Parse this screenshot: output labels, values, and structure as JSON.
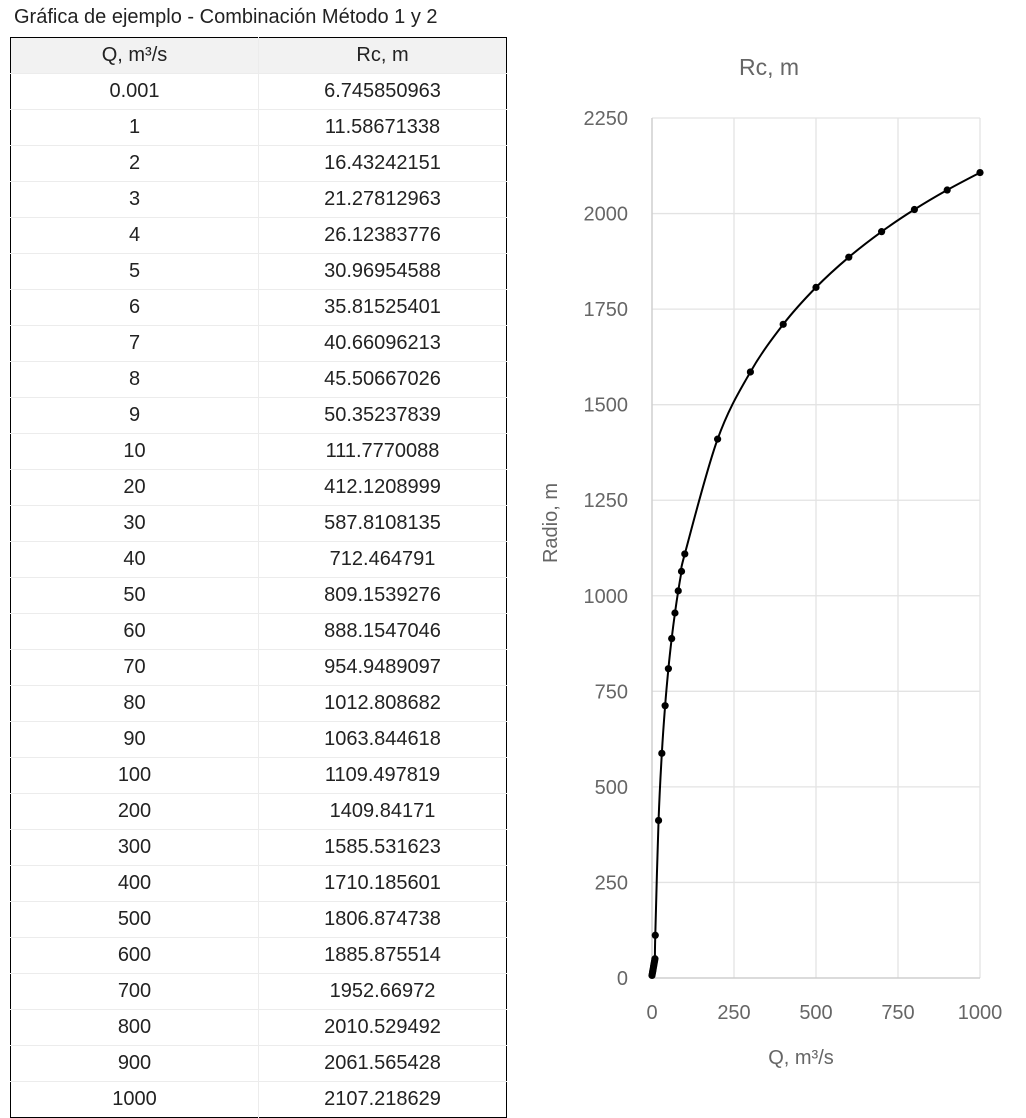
{
  "title": "Gráfica de ejemplo - Combinación Método 1 y 2",
  "table": {
    "headers": [
      "Q, m³/s",
      "Rc, m"
    ],
    "rows": [
      [
        "0.001",
        "6.745850963"
      ],
      [
        "1",
        "11.58671338"
      ],
      [
        "2",
        "16.43242151"
      ],
      [
        "3",
        "21.27812963"
      ],
      [
        "4",
        "26.12383776"
      ],
      [
        "5",
        "30.96954588"
      ],
      [
        "6",
        "35.81525401"
      ],
      [
        "7",
        "40.66096213"
      ],
      [
        "8",
        "45.50667026"
      ],
      [
        "9",
        "50.35237839"
      ],
      [
        "10",
        "111.7770088"
      ],
      [
        "20",
        "412.1208999"
      ],
      [
        "30",
        "587.8108135"
      ],
      [
        "40",
        "712.464791"
      ],
      [
        "50",
        "809.1539276"
      ],
      [
        "60",
        "888.1547046"
      ],
      [
        "70",
        "954.9489097"
      ],
      [
        "80",
        "1012.808682"
      ],
      [
        "90",
        "1063.844618"
      ],
      [
        "100",
        "1109.497819"
      ],
      [
        "200",
        "1409.84171"
      ],
      [
        "300",
        "1585.531623"
      ],
      [
        "400",
        "1710.185601"
      ],
      [
        "500",
        "1806.874738"
      ],
      [
        "600",
        "1885.875514"
      ],
      [
        "700",
        "1952.66972"
      ],
      [
        "800",
        "2010.529492"
      ],
      [
        "900",
        "2061.565428"
      ],
      [
        "1000",
        "2107.218629"
      ]
    ]
  },
  "chart_data": {
    "type": "scatter",
    "title": "Rc, m",
    "xlabel": "Q, m³/s",
    "ylabel": "Radio, m",
    "xlim": [
      0,
      1000
    ],
    "ylim": [
      0,
      2250
    ],
    "xticks": [
      0,
      250,
      500,
      750,
      1000
    ],
    "yticks": [
      0,
      250,
      500,
      750,
      1000,
      1250,
      1500,
      1750,
      2000,
      2250
    ],
    "grid": true,
    "series": [
      {
        "color": "#000000",
        "x": [
          0.001,
          1,
          2,
          3,
          4,
          5,
          6,
          7,
          8,
          9,
          10,
          20,
          30,
          40,
          50,
          60,
          70,
          80,
          90,
          100,
          200,
          300,
          400,
          500,
          600,
          700,
          800,
          900,
          1000
        ],
        "y": [
          6.745850963,
          11.58671338,
          16.43242151,
          21.27812963,
          26.12383776,
          30.96954588,
          35.81525401,
          40.66096213,
          45.50667026,
          50.35237839,
          111.7770088,
          412.1208999,
          587.8108135,
          712.464791,
          809.1539276,
          888.1547046,
          954.9489097,
          1012.808682,
          1063.844618,
          1109.497819,
          1409.84171,
          1585.531623,
          1710.185601,
          1806.874738,
          1885.875514,
          1952.66972,
          2010.529492,
          2061.565428,
          2107.218629
        ]
      }
    ]
  }
}
